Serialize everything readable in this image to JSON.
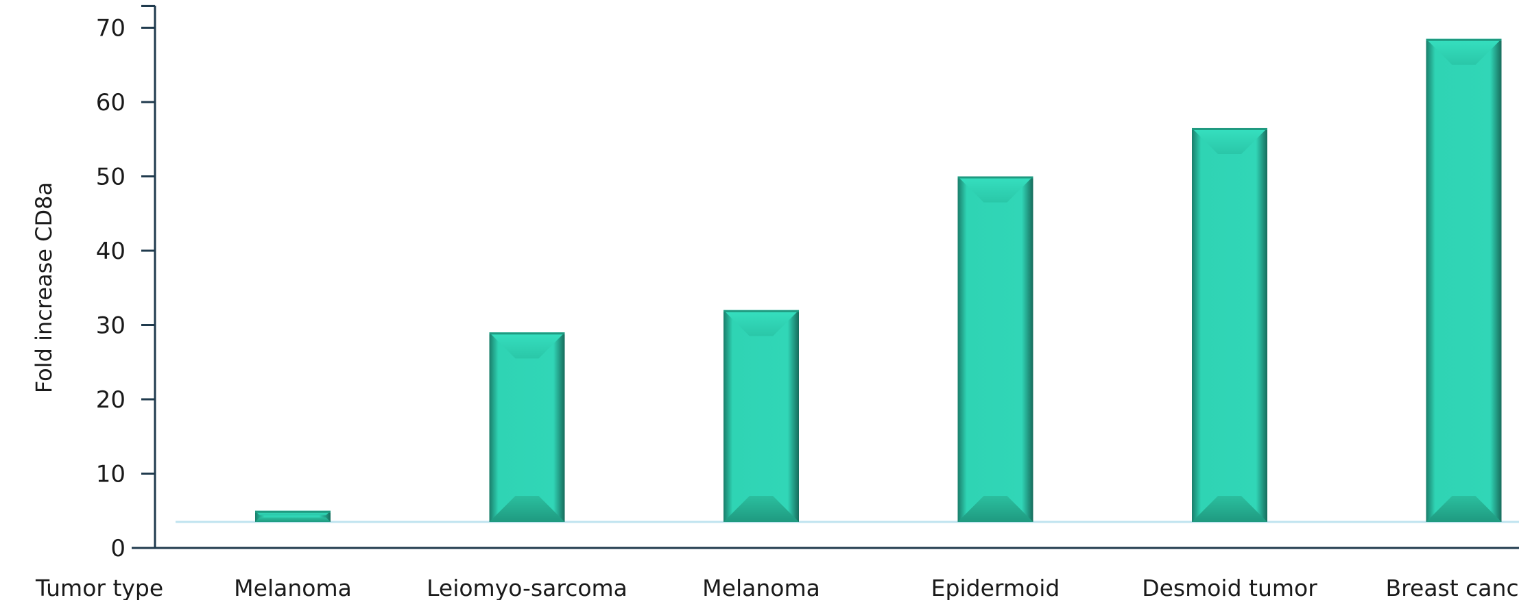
{
  "chart_data": {
    "type": "bar",
    "ylabel": "Fold increase CD8a",
    "xlabel": "Tumor type",
    "categories": [
      "Melanoma",
      "Leiomyo-sarcoma",
      "Melanoma",
      "Epidermoid",
      "Desmoid tumor",
      "Breast cancer"
    ],
    "values": [
      1.5,
      25.5,
      28.5,
      46.5,
      53,
      65
    ],
    "ylim": [
      0,
      70
    ],
    "yticks": [
      0,
      10,
      20,
      30,
      40,
      50,
      60,
      70
    ],
    "baseline": 3.5,
    "grid": false,
    "legend": "none",
    "colors": {
      "bar": "#2fd4b4",
      "bar_dark": "#1e8f78",
      "axis": "#1f3a4d",
      "baseline": "#bfe3ef"
    }
  }
}
